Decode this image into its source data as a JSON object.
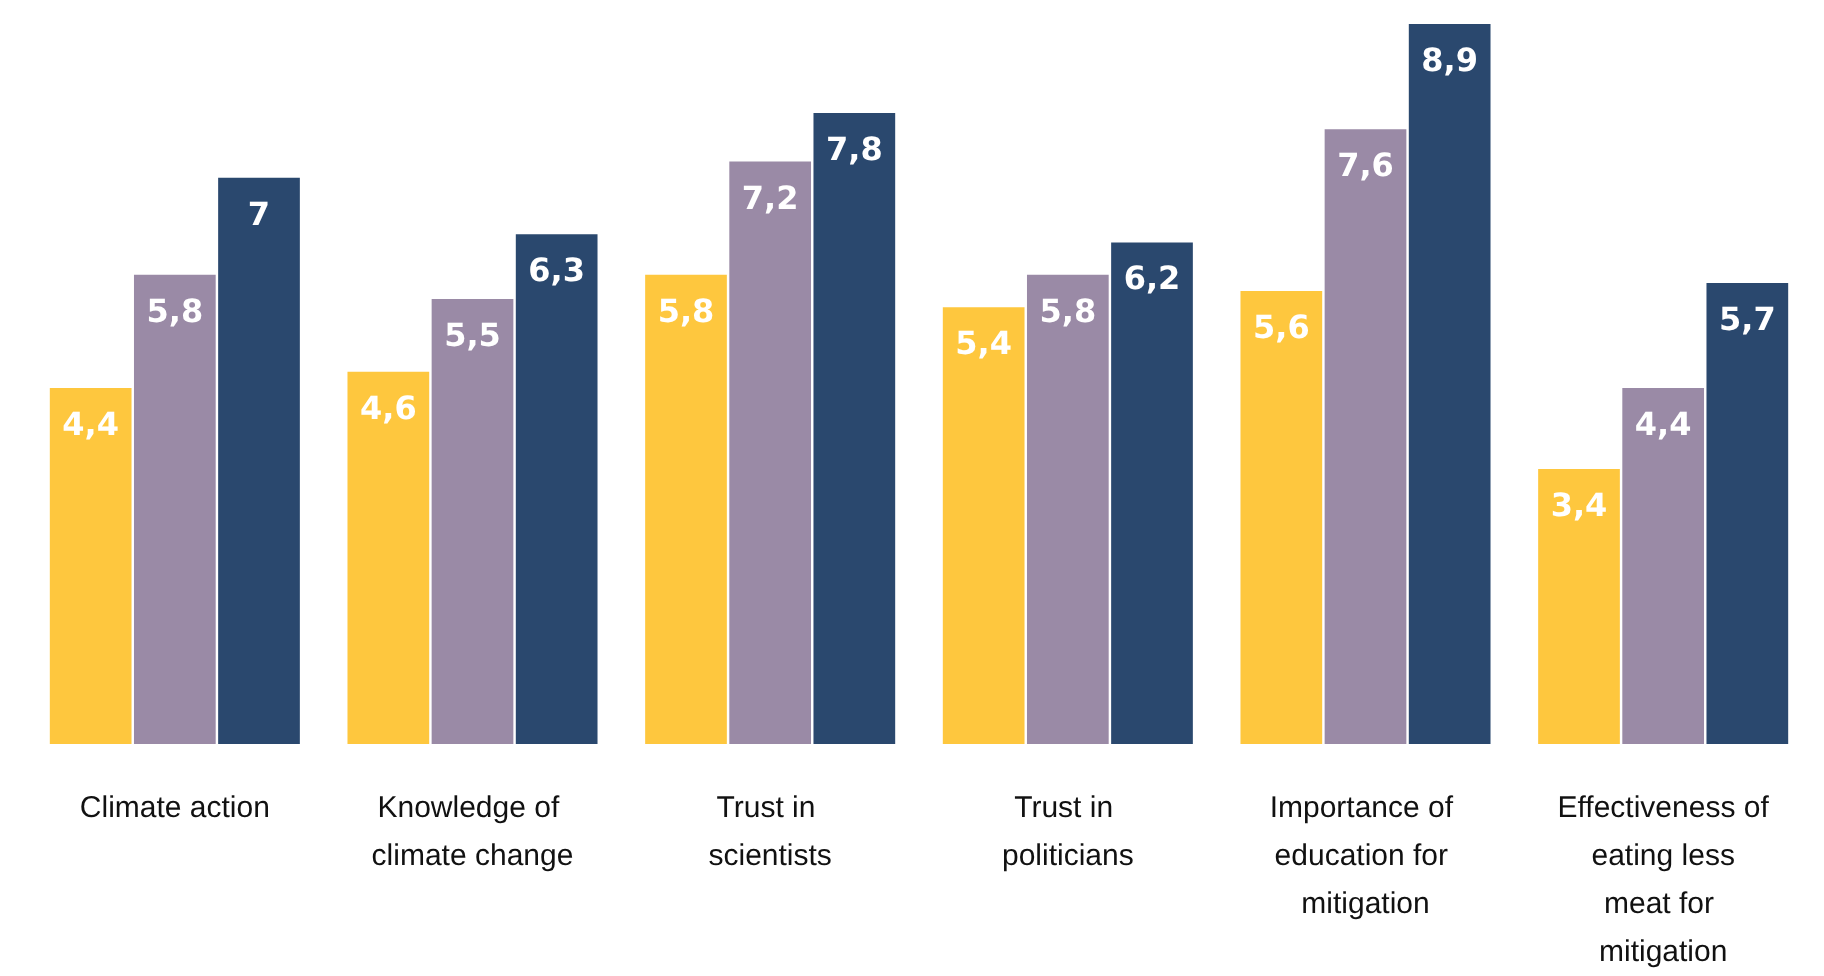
{
  "chart_data": {
    "type": "bar",
    "categories": [
      "Climate action",
      "Knowledge of climate change",
      "Trust in scientists",
      "Trust in politicians",
      "Importance of education for mitigation",
      "Effectiveness of eating less meat for mitigation"
    ],
    "series": [
      {
        "color": "#fec73e",
        "values": [
          4.4,
          4.6,
          5.8,
          5.4,
          5.6,
          3.4
        ],
        "value_labels": [
          "4,4",
          "4,6",
          "5,8",
          "5,4",
          "5,6",
          "3,4"
        ]
      },
      {
        "color": "#9a8aa6",
        "values": [
          5.8,
          5.5,
          7.2,
          5.8,
          7.6,
          4.4
        ],
        "value_labels": [
          "5,8",
          "5,5",
          "7,2",
          "5,8",
          "7,6",
          "4,4"
        ]
      },
      {
        "color": "#2a486e",
        "values": [
          7,
          6.3,
          7.8,
          6.2,
          8.9,
          5.7
        ],
        "value_labels": [
          "7",
          "6,3",
          "7,8",
          "6,2",
          "8,9",
          "5,7"
        ]
      }
    ]
  }
}
